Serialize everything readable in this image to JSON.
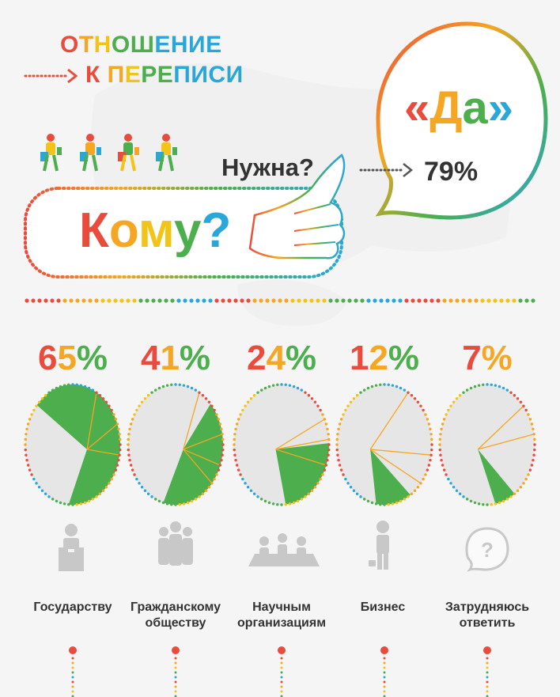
{
  "title": {
    "line1": "ОТНОШЕНИЕ",
    "line2": "К ПЕРЕПИСИ"
  },
  "question_needed": "Нужна?",
  "question_whom": "Кому?",
  "answer": {
    "yes": "«Да»",
    "percent": "79%"
  },
  "colors": {
    "green": "#4cae4c",
    "orange": "#f5a623",
    "red": "#e94b3c",
    "blue": "#2aa7d9",
    "yellow": "#f2c318",
    "pie_bg": "#e6e6e6",
    "icon_gray": "#c8c8c8"
  },
  "categories": [
    {
      "percent": "65%",
      "label_line1": "Государству",
      "label_line2": "",
      "value": 65,
      "icon": "government-podium-icon"
    },
    {
      "percent": "41%",
      "label_line1": "Гражданскому",
      "label_line2": "обществу",
      "value": 41,
      "icon": "people-group-icon"
    },
    {
      "percent": "24%",
      "label_line1": "Научным",
      "label_line2": "организациям",
      "value": 24,
      "icon": "meeting-table-icon"
    },
    {
      "percent": "12%",
      "label_line1": "Бизнес",
      "label_line2": "",
      "value": 12,
      "icon": "businessman-icon"
    },
    {
      "percent": "7%",
      "label_line1": "Затрудняюсь",
      "label_line2": "ответить",
      "value": 7,
      "icon": "question-bubble-icon"
    }
  ]
}
